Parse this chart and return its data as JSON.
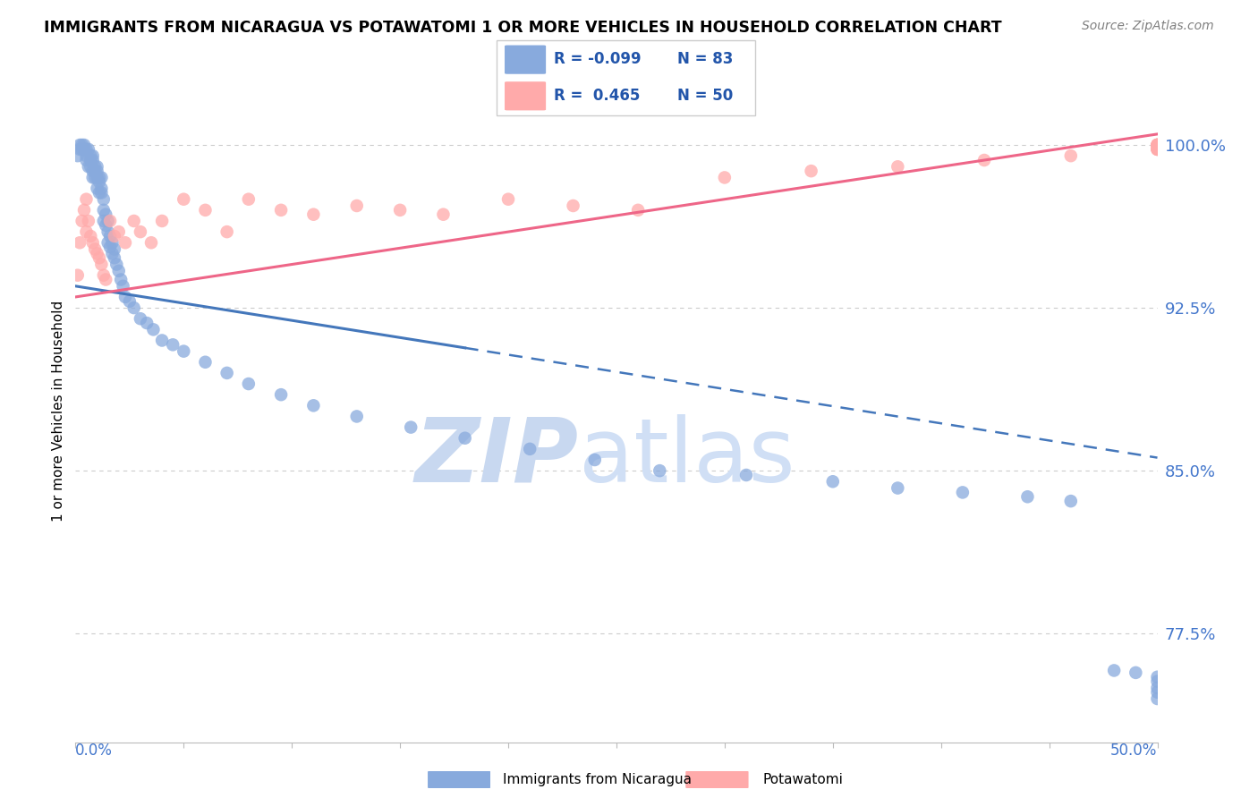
{
  "title": "IMMIGRANTS FROM NICARAGUA VS POTAWATOMI 1 OR MORE VEHICLES IN HOUSEHOLD CORRELATION CHART",
  "source": "Source: ZipAtlas.com",
  "ylabel": "1 or more Vehicles in Household",
  "ytick_labels": [
    "100.0%",
    "92.5%",
    "85.0%",
    "77.5%"
  ],
  "ytick_values": [
    1.0,
    0.925,
    0.85,
    0.775
  ],
  "xlim": [
    0.0,
    0.5
  ],
  "ylim": [
    0.725,
    1.03
  ],
  "color_blue": "#88AADD",
  "color_pink": "#FFAAAA",
  "color_blue_line": "#4477BB",
  "color_pink_line": "#EE6688",
  "color_grid": "#CCCCCC",
  "watermark_color": "#C8D8F0",
  "blue_x": [
    0.001,
    0.002,
    0.002,
    0.003,
    0.003,
    0.004,
    0.004,
    0.005,
    0.005,
    0.005,
    0.006,
    0.006,
    0.007,
    0.007,
    0.007,
    0.008,
    0.008,
    0.008,
    0.008,
    0.009,
    0.009,
    0.009,
    0.01,
    0.01,
    0.01,
    0.01,
    0.011,
    0.011,
    0.011,
    0.012,
    0.012,
    0.012,
    0.013,
    0.013,
    0.013,
    0.014,
    0.014,
    0.015,
    0.015,
    0.015,
    0.016,
    0.016,
    0.017,
    0.017,
    0.018,
    0.018,
    0.019,
    0.02,
    0.021,
    0.022,
    0.023,
    0.025,
    0.027,
    0.03,
    0.033,
    0.036,
    0.04,
    0.045,
    0.05,
    0.06,
    0.07,
    0.08,
    0.095,
    0.11,
    0.13,
    0.155,
    0.18,
    0.21,
    0.24,
    0.27,
    0.31,
    0.35,
    0.38,
    0.41,
    0.44,
    0.46,
    0.48,
    0.49,
    0.5,
    0.5,
    0.5,
    0.5,
    0.5
  ],
  "blue_y": [
    0.995,
    0.998,
    1.0,
    0.998,
    1.0,
    0.998,
    1.0,
    0.998,
    0.995,
    0.993,
    0.99,
    0.998,
    0.995,
    0.993,
    0.99,
    0.995,
    0.993,
    0.988,
    0.985,
    0.99,
    0.988,
    0.985,
    0.99,
    0.988,
    0.985,
    0.98,
    0.985,
    0.983,
    0.978,
    0.985,
    0.98,
    0.978,
    0.975,
    0.97,
    0.965,
    0.968,
    0.963,
    0.965,
    0.96,
    0.955,
    0.958,
    0.953,
    0.955,
    0.95,
    0.952,
    0.948,
    0.945,
    0.942,
    0.938,
    0.935,
    0.93,
    0.928,
    0.925,
    0.92,
    0.918,
    0.915,
    0.91,
    0.908,
    0.905,
    0.9,
    0.895,
    0.89,
    0.885,
    0.88,
    0.875,
    0.87,
    0.865,
    0.86,
    0.855,
    0.85,
    0.848,
    0.845,
    0.842,
    0.84,
    0.838,
    0.836,
    0.758,
    0.757,
    0.755,
    0.753,
    0.75,
    0.748,
    0.745
  ],
  "pink_x": [
    0.001,
    0.002,
    0.003,
    0.004,
    0.005,
    0.005,
    0.006,
    0.007,
    0.008,
    0.009,
    0.01,
    0.011,
    0.012,
    0.013,
    0.014,
    0.016,
    0.018,
    0.02,
    0.023,
    0.027,
    0.03,
    0.035,
    0.04,
    0.05,
    0.06,
    0.07,
    0.08,
    0.095,
    0.11,
    0.13,
    0.15,
    0.17,
    0.2,
    0.23,
    0.26,
    0.3,
    0.34,
    0.38,
    0.42,
    0.46,
    0.5,
    0.5,
    0.5,
    0.5,
    0.5,
    0.5,
    0.5,
    0.5,
    0.5,
    0.5
  ],
  "pink_y": [
    0.94,
    0.955,
    0.965,
    0.97,
    0.975,
    0.96,
    0.965,
    0.958,
    0.955,
    0.952,
    0.95,
    0.948,
    0.945,
    0.94,
    0.938,
    0.965,
    0.958,
    0.96,
    0.955,
    0.965,
    0.96,
    0.955,
    0.965,
    0.975,
    0.97,
    0.96,
    0.975,
    0.97,
    0.968,
    0.972,
    0.97,
    0.968,
    0.975,
    0.972,
    0.97,
    0.985,
    0.988,
    0.99,
    0.993,
    0.995,
    0.998,
    1.0,
    0.998,
    1.0,
    0.998,
    0.998,
    1.0,
    1.0,
    1.0,
    1.0
  ],
  "blue_line_x0": 0.0,
  "blue_line_x_solid_end": 0.18,
  "blue_line_x1": 0.5,
  "blue_line_y0": 0.935,
  "blue_line_y1": 0.856,
  "pink_line_x0": 0.0,
  "pink_line_x1": 0.5,
  "pink_line_y0": 0.93,
  "pink_line_y1": 1.005
}
